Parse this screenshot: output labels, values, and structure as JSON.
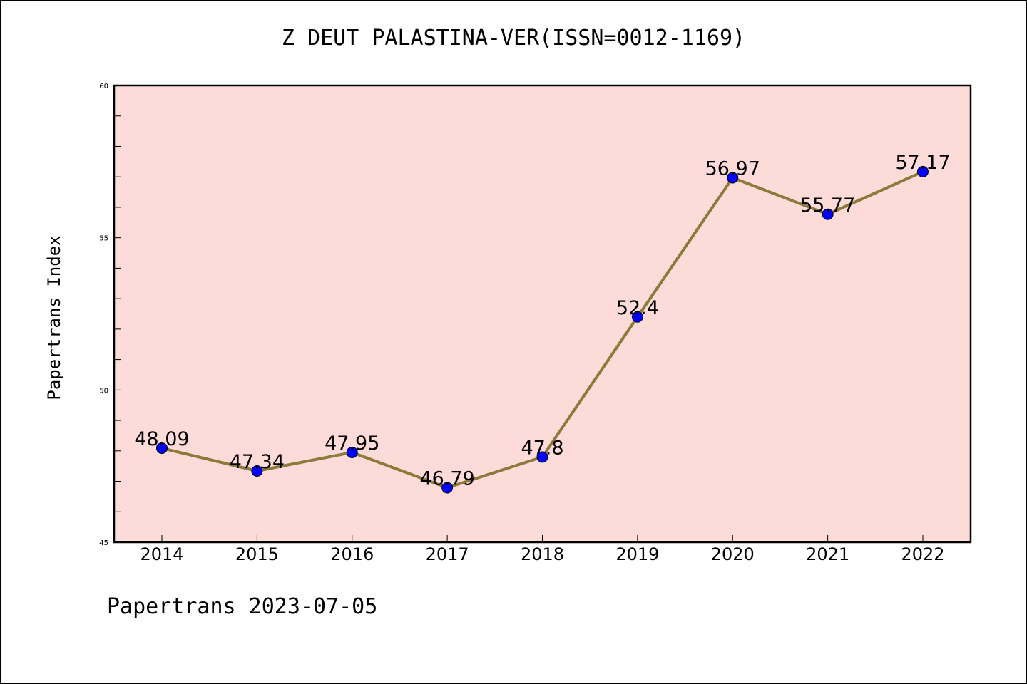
{
  "chart_data": {
    "type": "line",
    "title": "Z DEUT PALASTINA-VER(ISSN=0012-1169)",
    "xlabel": "",
    "ylabel": "Papertrans Index",
    "categories": [
      "2014",
      "2015",
      "2016",
      "2017",
      "2018",
      "2019",
      "2020",
      "2021",
      "2022"
    ],
    "series": [
      {
        "values": [
          48.09,
          47.34,
          47.95,
          46.79,
          47.8,
          52.4,
          56.97,
          55.77,
          57.17
        ],
        "labels": [
          "48.09",
          "47.34",
          "47.95",
          "46.79",
          "47.8",
          "52.4",
          "56.97",
          "55.77",
          "57.17"
        ]
      }
    ],
    "ylim": [
      45,
      60
    ],
    "yticks": [
      45,
      50,
      55,
      60
    ],
    "ytick_labels": [
      "45",
      "50",
      "55",
      "60"
    ],
    "grid": false,
    "colors": {
      "plot_background": "#fddbd8",
      "line": "#8b7a3a",
      "marker": "#0000ff"
    }
  },
  "footer": "Papertrans 2023-07-05"
}
